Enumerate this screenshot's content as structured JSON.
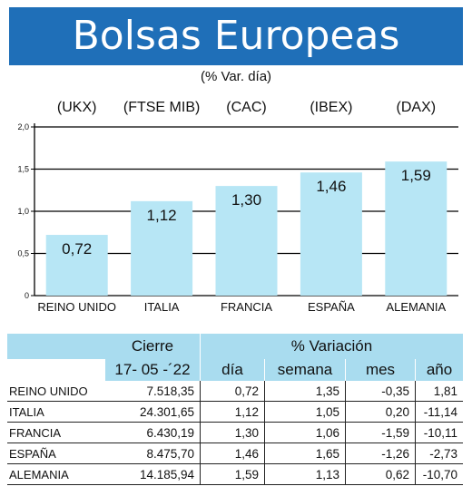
{
  "header": {
    "title": "Bolsas Europeas",
    "subtitle": "(% Var. día)"
  },
  "chart_data": {
    "type": "bar",
    "categories": [
      "REINO UNIDO",
      "ITALIA",
      "FRANCIA",
      "ESPAÑA",
      "ALEMANIA"
    ],
    "index_labels": [
      "(UKX)",
      "(FTSE MIB)",
      "(CAC)",
      "(IBEX)",
      "(DAX)"
    ],
    "values": [
      0.72,
      1.12,
      1.3,
      1.46,
      1.59
    ],
    "value_labels": [
      "0,72",
      "1,12",
      "1,30",
      "1,46",
      "1,59"
    ],
    "y_ticks": [
      "0",
      "0,5",
      "1,0",
      "1,5",
      "2,0"
    ],
    "ylim": [
      0,
      2.0
    ],
    "grid": true,
    "bar_color": "#b7e6f5"
  },
  "table": {
    "group_headers": {
      "cierre": "Cierre",
      "variacion": "% Variación"
    },
    "date": "17- 05 -´22",
    "columns": {
      "dia": "día",
      "semana": "semana",
      "mes": "mes",
      "ano": "año"
    },
    "rows": [
      {
        "name": "REINO UNIDO",
        "cierre": "7.518,35",
        "dia": "0,72",
        "semana": "1,35",
        "mes": "-0,35",
        "ano": "1,81"
      },
      {
        "name": "ITALIA",
        "cierre": "24.301,65",
        "dia": "1,12",
        "semana": "1,05",
        "mes": "0,20",
        "ano": "-11,14"
      },
      {
        "name": "FRANCIA",
        "cierre": "6.430,19",
        "dia": "1,30",
        "semana": "1,06",
        "mes": "-1,59",
        "ano": "-10,11"
      },
      {
        "name": "ESPAÑA",
        "cierre": "8.475,70",
        "dia": "1,46",
        "semana": "1,65",
        "mes": "-1,26",
        "ano": "-2,73"
      },
      {
        "name": "ALEMANIA",
        "cierre": "14.185,94",
        "dia": "1,59",
        "semana": "1,13",
        "mes": "0,62",
        "ano": "-10,70"
      }
    ]
  }
}
